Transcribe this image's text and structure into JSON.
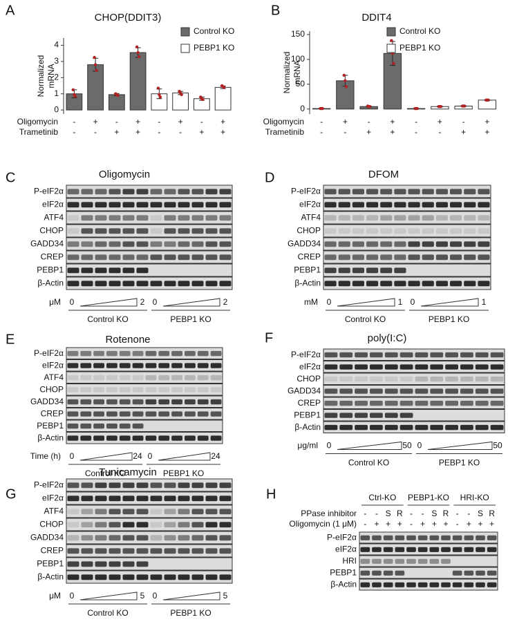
{
  "chart_data": [
    {
      "type": "bar",
      "letter": "A",
      "title": "CHOP(DDIT3)",
      "ylabel": [
        "Normalized",
        "mRNA"
      ],
      "ylim": [
        -0.25,
        4.45
      ],
      "yticks": [
        0,
        1,
        2,
        3,
        4
      ],
      "series": [
        {
          "name": "Control KO",
          "color": "#6b6b6b",
          "values": [
            1.0,
            2.8,
            0.95,
            3.55,
            null,
            null,
            null,
            null
          ],
          "errors": [
            0.25,
            0.4,
            0.07,
            0.3,
            null,
            null,
            null,
            null
          ],
          "points": [
            [
              1.25,
              0.95,
              0.85
            ],
            [
              3.25,
              2.8,
              2.45
            ],
            [
              1.0,
              0.95,
              0.9
            ],
            [
              3.9,
              3.55,
              3.3
            ],
            null,
            null,
            null,
            null
          ]
        },
        {
          "name": "PEBP1 KO",
          "color": "#ffffff",
          "values": [
            null,
            null,
            null,
            null,
            1.0,
            1.05,
            0.7,
            1.4
          ],
          "errors": [
            null,
            null,
            null,
            null,
            0.3,
            0.1,
            0.1,
            0.08
          ],
          "points": [
            null,
            null,
            null,
            null,
            [
              1.35,
              0.95,
              0.8
            ],
            [
              1.15,
              1.05,
              0.95
            ],
            [
              0.8,
              0.7,
              0.65
            ],
            [
              1.5,
              1.45,
              1.4
            ]
          ]
        }
      ],
      "point_color": "#b22222",
      "conditions": [
        {
          "name": "Oligomycin",
          "levels": [
            "-",
            "+",
            "-",
            "+",
            "-",
            "+",
            "-",
            "+"
          ]
        },
        {
          "name": "Trametinib",
          "levels": [
            "-",
            "-",
            "+",
            "+",
            "-",
            "-",
            "+",
            "+"
          ]
        }
      ]
    },
    {
      "type": "bar",
      "letter": "B",
      "title": "DDIT4",
      "ylabel": [
        "Normalized",
        "mRNA"
      ],
      "ylim": [
        -10,
        157
      ],
      "yticks": [
        0,
        50,
        100,
        150
      ],
      "series": [
        {
          "name": "Control KO",
          "color": "#6b6b6b",
          "values": [
            1,
            57,
            5,
            112,
            null,
            null,
            null,
            null
          ],
          "errors": [
            0.5,
            11,
            1,
            24,
            null,
            null,
            null,
            null
          ],
          "points": [
            [
              1,
              1,
              1
            ],
            [
              68,
              57,
              45
            ],
            [
              6,
              5,
              5
            ],
            [
              138,
              112,
              92
            ],
            null,
            null,
            null,
            null
          ]
        },
        {
          "name": "PEBP1 KO",
          "color": "#ffffff",
          "values": [
            null,
            null,
            null,
            null,
            1,
            5,
            6,
            18
          ],
          "errors": [
            null,
            null,
            null,
            null,
            0.5,
            1,
            1,
            1
          ],
          "points": [
            null,
            null,
            null,
            null,
            [
              1,
              1,
              1
            ],
            [
              5,
              5,
              5
            ],
            [
              6,
              6,
              6
            ],
            [
              18,
              18,
              18
            ]
          ]
        }
      ],
      "point_color": "#b22222",
      "conditions": [
        {
          "name": "Oligomycin",
          "levels": [
            "-",
            "+",
            "-",
            "+",
            "-",
            "+",
            "-",
            "+"
          ]
        },
        {
          "name": "Trametinib",
          "levels": [
            "-",
            "-",
            "+",
            "+",
            "-",
            "-",
            "+",
            "+"
          ]
        }
      ]
    }
  ],
  "blots": [
    {
      "letter": "C",
      "title": "Oligomycin",
      "rows": [
        "P-eIF2α",
        "eIF2α",
        "ATF4",
        "CHOP",
        "GADD34",
        "CREP",
        "PEBP1",
        "β-Actin"
      ],
      "unit": "μM",
      "dose": [
        "0",
        "2"
      ],
      "groups": [
        "Control KO",
        "PEBP1 KO"
      ]
    },
    {
      "letter": "D",
      "title": "DFOM",
      "rows": [
        "P-eIF2α",
        "eIF2α",
        "ATF4",
        "CHOP",
        "GADD34",
        "CREP",
        "PEBP1",
        "β-Actin"
      ],
      "unit": "mM",
      "dose": [
        "0",
        "1"
      ],
      "groups": [
        "Control KO",
        "PEBP1 KO"
      ]
    },
    {
      "letter": "E",
      "title": "Rotenone",
      "rows": [
        "P-eIF2α",
        "eIF2α",
        "ATF4",
        "CHOP",
        "GADD34",
        "CREP",
        "PEBP1",
        "β-Actin"
      ],
      "unit": "Time (h)",
      "dose": [
        "0",
        "24"
      ],
      "groups": [
        "Control KO",
        "PEBP1 KO"
      ]
    },
    {
      "letter": "F",
      "title": "poly(I:C)",
      "rows": [
        "P-eIF2α",
        "eIF2α",
        "CHOP",
        "GADD34",
        "CREP",
        "PEBP1",
        "β-Actin"
      ],
      "unit": "μg/ml",
      "dose": [
        "0",
        "50"
      ],
      "groups": [
        "Control KO",
        "PEBP1 KO"
      ]
    },
    {
      "letter": "G",
      "title": "Tunicamycin",
      "rows": [
        "P-eIF2α",
        "eIF2α",
        "ATF4",
        "CHOP",
        "GADD34",
        "CREP",
        "PEBP1",
        "β-Actin"
      ],
      "unit": "μM",
      "dose": [
        "0",
        "5"
      ],
      "groups": [
        "Control KO",
        "PEBP1 KO"
      ]
    }
  ],
  "panel_h": {
    "letter": "H",
    "groups": [
      "Ctrl-KO",
      "PEBP1-KO",
      "HRI-KO"
    ],
    "conditions": [
      {
        "name": "PPase inhibitor",
        "levels": [
          "-",
          "-",
          "S",
          "R"
        ]
      },
      {
        "name": "Oligomycin (1 μM)",
        "levels": [
          "-",
          "+",
          "+",
          "+"
        ]
      }
    ],
    "rows": [
      "P-eIF2α",
      "eIF2α",
      "HRI",
      "PEBP1",
      "β-Actin"
    ]
  }
}
